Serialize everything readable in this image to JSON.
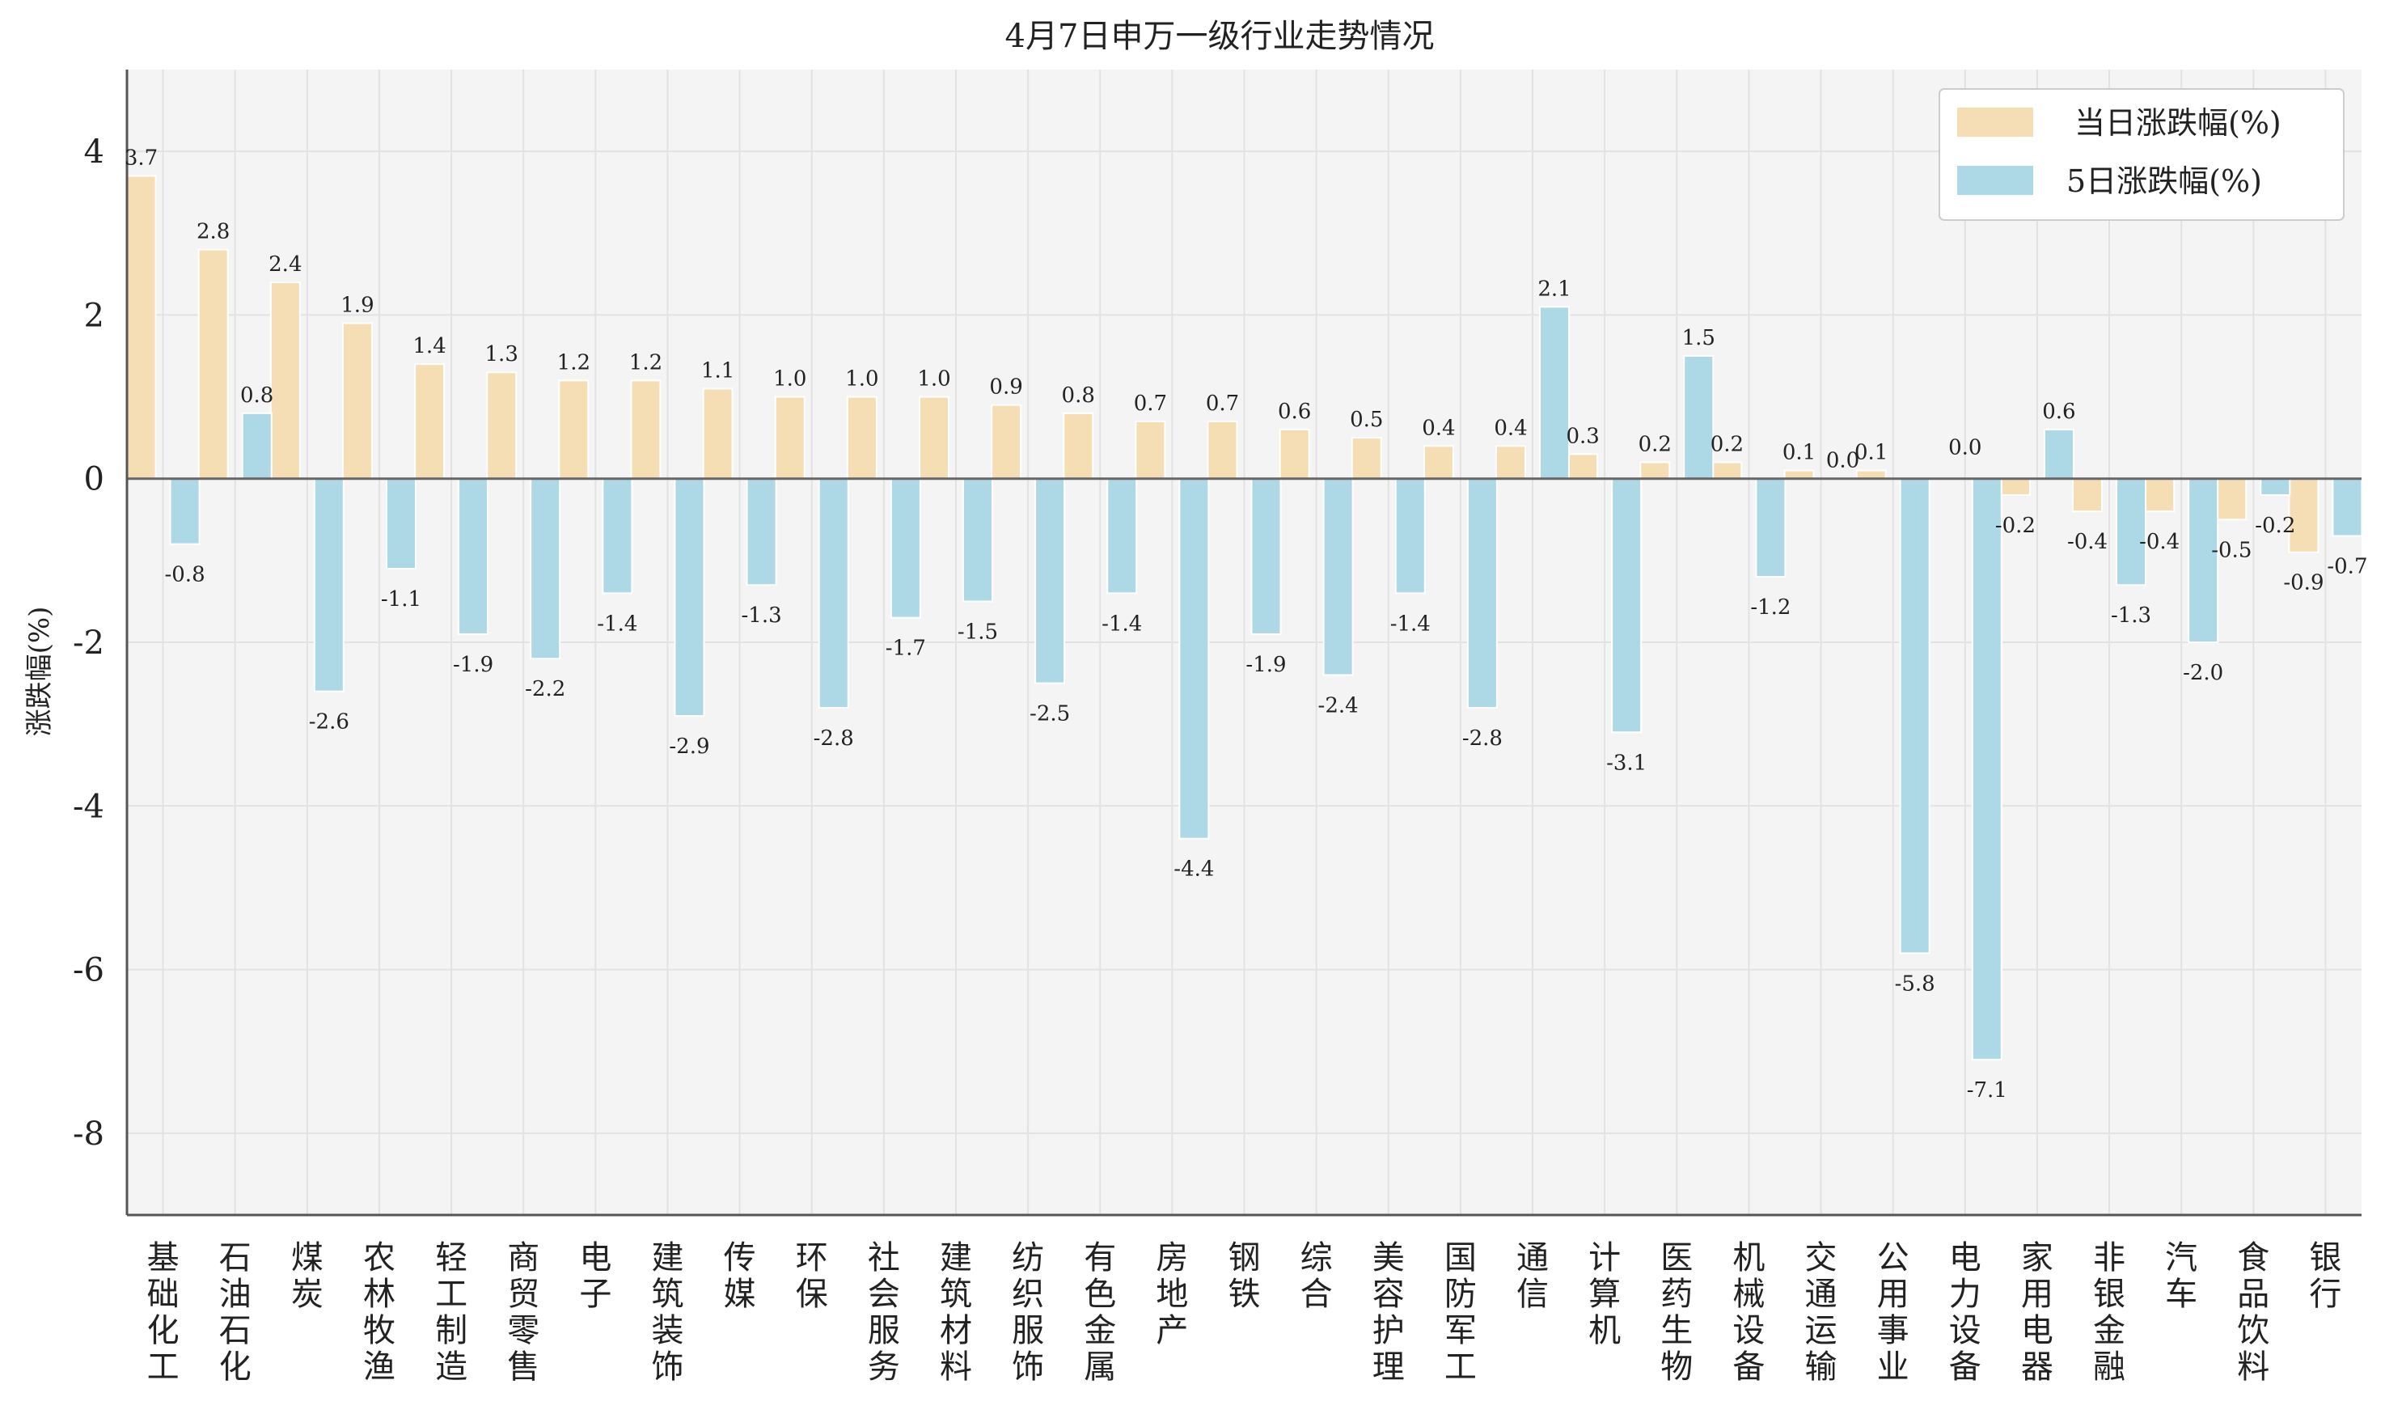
{
  "chart_data": {
    "type": "bar",
    "title": "4月7日申万一级行业走势情况",
    "xlabel": "",
    "ylabel": "涨跌幅(%)",
    "ylim": [
      -9,
      5
    ],
    "yticks": [
      4,
      2,
      0,
      -2,
      -4,
      -6,
      -8
    ],
    "ytick_labels": [
      "4",
      "2",
      "0",
      "-2",
      "-4",
      "-6",
      "-8"
    ],
    "grid": true,
    "legend_position": "top-right",
    "categories": [
      "基础化工",
      "石油石化",
      "煤炭",
      "农林牧渔",
      "轻工制造",
      "商贸零售",
      "电子",
      "建筑装饰",
      "传媒",
      "环保",
      "社会服务",
      "建筑材料",
      "纺织服饰",
      "有色金属",
      "房地产",
      "钢铁",
      "综合",
      "美容护理",
      "国防军工",
      "通信",
      "计算机",
      "医药生物",
      "机械设备",
      "交通运输",
      "公用事业",
      "电力设备",
      "家用电器",
      "非银金融",
      "汽车",
      "食品饮料",
      "银行"
    ],
    "series": [
      {
        "name": "当日涨跌幅(%)",
        "color": "#f5deb3",
        "values": [
          3.7,
          2.8,
          2.4,
          1.9,
          1.4,
          1.3,
          1.2,
          1.2,
          1.1,
          1.0,
          1.0,
          1.0,
          0.9,
          0.8,
          0.7,
          0.7,
          0.6,
          0.5,
          0.4,
          0.4,
          0.3,
          0.2,
          0.2,
          0.1,
          0.1,
          0.0,
          -0.2,
          -0.4,
          -0.4,
          -0.5,
          -0.9
        ],
        "labels": [
          "3.7",
          "2.8",
          "2.4",
          "1.9",
          "1.4",
          "1.3",
          "1.2",
          "1.2",
          "1.1",
          "1.0",
          "1.0",
          "1.0",
          "0.9",
          "0.8",
          "0.7",
          "0.7",
          "0.6",
          "0.5",
          "0.4",
          "0.4",
          "0.3",
          "0.2",
          "0.2",
          "0.1",
          "0.1",
          "",
          "-0.2",
          "-0.4",
          "-0.4",
          "-0.5",
          "-0.9"
        ]
      },
      {
        "name": "5日涨跌幅(%)",
        "color": "#add8e6",
        "values": [
          -0.8,
          0.8,
          -2.6,
          -1.1,
          -1.9,
          -2.2,
          -1.4,
          -2.9,
          -1.3,
          -2.8,
          -1.7,
          -1.5,
          -2.5,
          -1.4,
          -4.4,
          -1.9,
          -2.4,
          -1.4,
          -2.8,
          2.1,
          -3.1,
          1.5,
          -1.2,
          0.0,
          -5.8,
          -7.1,
          0.6,
          -1.3,
          -2.0,
          -0.2,
          -0.7
        ],
        "labels": [
          "-0.8",
          "0.8",
          "-2.6",
          "-1.1",
          "-1.9",
          "-2.2",
          "-1.4",
          "-2.9",
          "-1.3",
          "-2.8",
          "-1.7",
          "-1.5",
          "-2.5",
          "-1.4",
          "-4.4",
          "-1.9",
          "-2.4",
          "-1.4",
          "-2.8",
          "2.1",
          "-3.1",
          "1.5",
          "-1.2",
          "0.0",
          "-5.8",
          "-7.1",
          "0.6",
          "-1.3",
          "-2.0",
          "-0.2",
          "-0.7"
        ]
      }
    ],
    "extra_labels": [
      {
        "category_index": 25,
        "text": "0.0"
      }
    ]
  },
  "colors": {
    "plot_background": "#f4f4f4",
    "grid": "#e2e2e2",
    "axis": "#555555",
    "zero_line": "#666666",
    "text": "#222222"
  }
}
